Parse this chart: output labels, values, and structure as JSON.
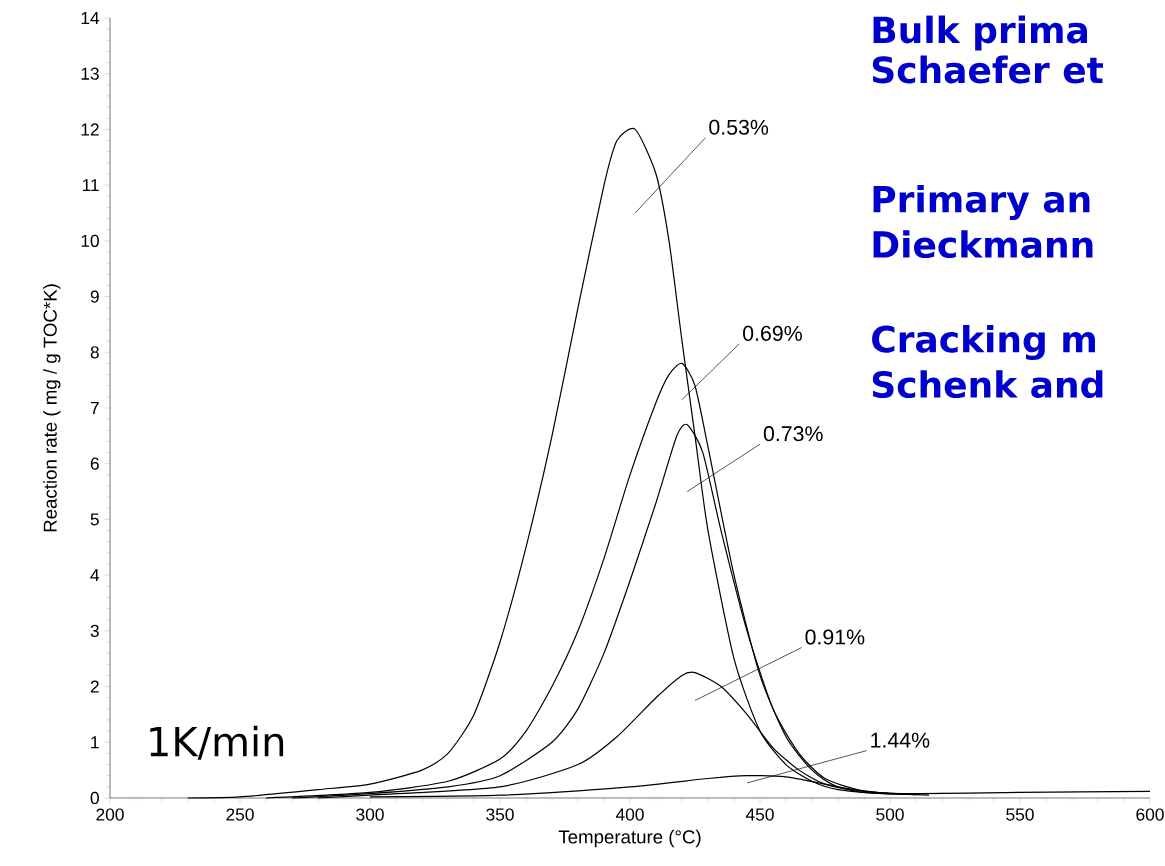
{
  "chart_data": {
    "type": "line",
    "xlabel": "Temperature (°C)",
    "ylabel": "Reaction rate ( mg / g TOC*K)",
    "xlim": [
      200,
      600
    ],
    "ylim": [
      0,
      14
    ],
    "xticks": [
      200,
      250,
      300,
      350,
      400,
      450,
      500,
      550,
      600
    ],
    "yticks": [
      0,
      1,
      2,
      3,
      4,
      5,
      6,
      7,
      8,
      9,
      10,
      11,
      12,
      13,
      14
    ],
    "grid": false,
    "legend": false,
    "marker": "none",
    "line_style": "solid",
    "series": [
      {
        "name": "0.53%",
        "color": "#000000",
        "x": [
          230,
          250,
          280,
          300,
          320,
          330,
          340,
          350,
          360,
          370,
          380,
          390,
          395,
          402,
          410,
          415,
          420,
          425,
          430,
          440,
          450,
          460,
          470,
          480,
          500,
          550,
          600
        ],
        "values": [
          0,
          0.02,
          0.15,
          0.25,
          0.5,
          0.8,
          1.5,
          2.8,
          4.5,
          6.5,
          8.8,
          11.0,
          11.8,
          12.0,
          11.2,
          10.0,
          8.2,
          6.5,
          4.8,
          2.5,
          1.2,
          0.6,
          0.3,
          0.15,
          0.08,
          0.1,
          0.12
        ]
      },
      {
        "name": "0.69%",
        "color": "#000000",
        "x": [
          260,
          300,
          330,
          350,
          360,
          370,
          380,
          390,
          400,
          410,
          415,
          420,
          425,
          430,
          440,
          450,
          460,
          470,
          480,
          500
        ],
        "values": [
          0,
          0.1,
          0.3,
          0.7,
          1.2,
          2.0,
          3.0,
          4.3,
          5.8,
          7.1,
          7.6,
          7.8,
          7.4,
          6.3,
          4.0,
          2.2,
          1.1,
          0.5,
          0.2,
          0.08
        ]
      },
      {
        "name": "0.73%",
        "color": "#000000",
        "x": [
          270,
          300,
          330,
          350,
          370,
          380,
          390,
          400,
          410,
          418,
          422,
          428,
          435,
          445,
          455,
          465,
          475,
          490,
          505
        ],
        "values": [
          0,
          0.08,
          0.2,
          0.4,
          1.0,
          1.6,
          2.6,
          3.9,
          5.3,
          6.5,
          6.7,
          6.2,
          4.8,
          3.0,
          1.6,
          0.8,
          0.35,
          0.12,
          0.07
        ]
      },
      {
        "name": "0.91%",
        "color": "#000000",
        "x": [
          280,
          300,
          350,
          380,
          395,
          410,
          420,
          425,
          435,
          445,
          455,
          465,
          475,
          490,
          510
        ],
        "values": [
          0,
          0.05,
          0.2,
          0.6,
          1.1,
          1.8,
          2.2,
          2.25,
          2.0,
          1.5,
          0.9,
          0.5,
          0.25,
          0.1,
          0.06
        ]
      },
      {
        "name": "1.44%",
        "color": "#000000",
        "x": [
          300,
          350,
          400,
          430,
          445,
          460,
          475,
          490,
          515
        ],
        "values": [
          0.02,
          0.05,
          0.2,
          0.35,
          0.4,
          0.38,
          0.25,
          0.12,
          0.05
        ]
      }
    ],
    "annotations": [
      "1K/min",
      "Bulk prima",
      "Schaefer et",
      "Primary an",
      "Dieckmann",
      "Cracking m",
      "Schenk and"
    ]
  }
}
